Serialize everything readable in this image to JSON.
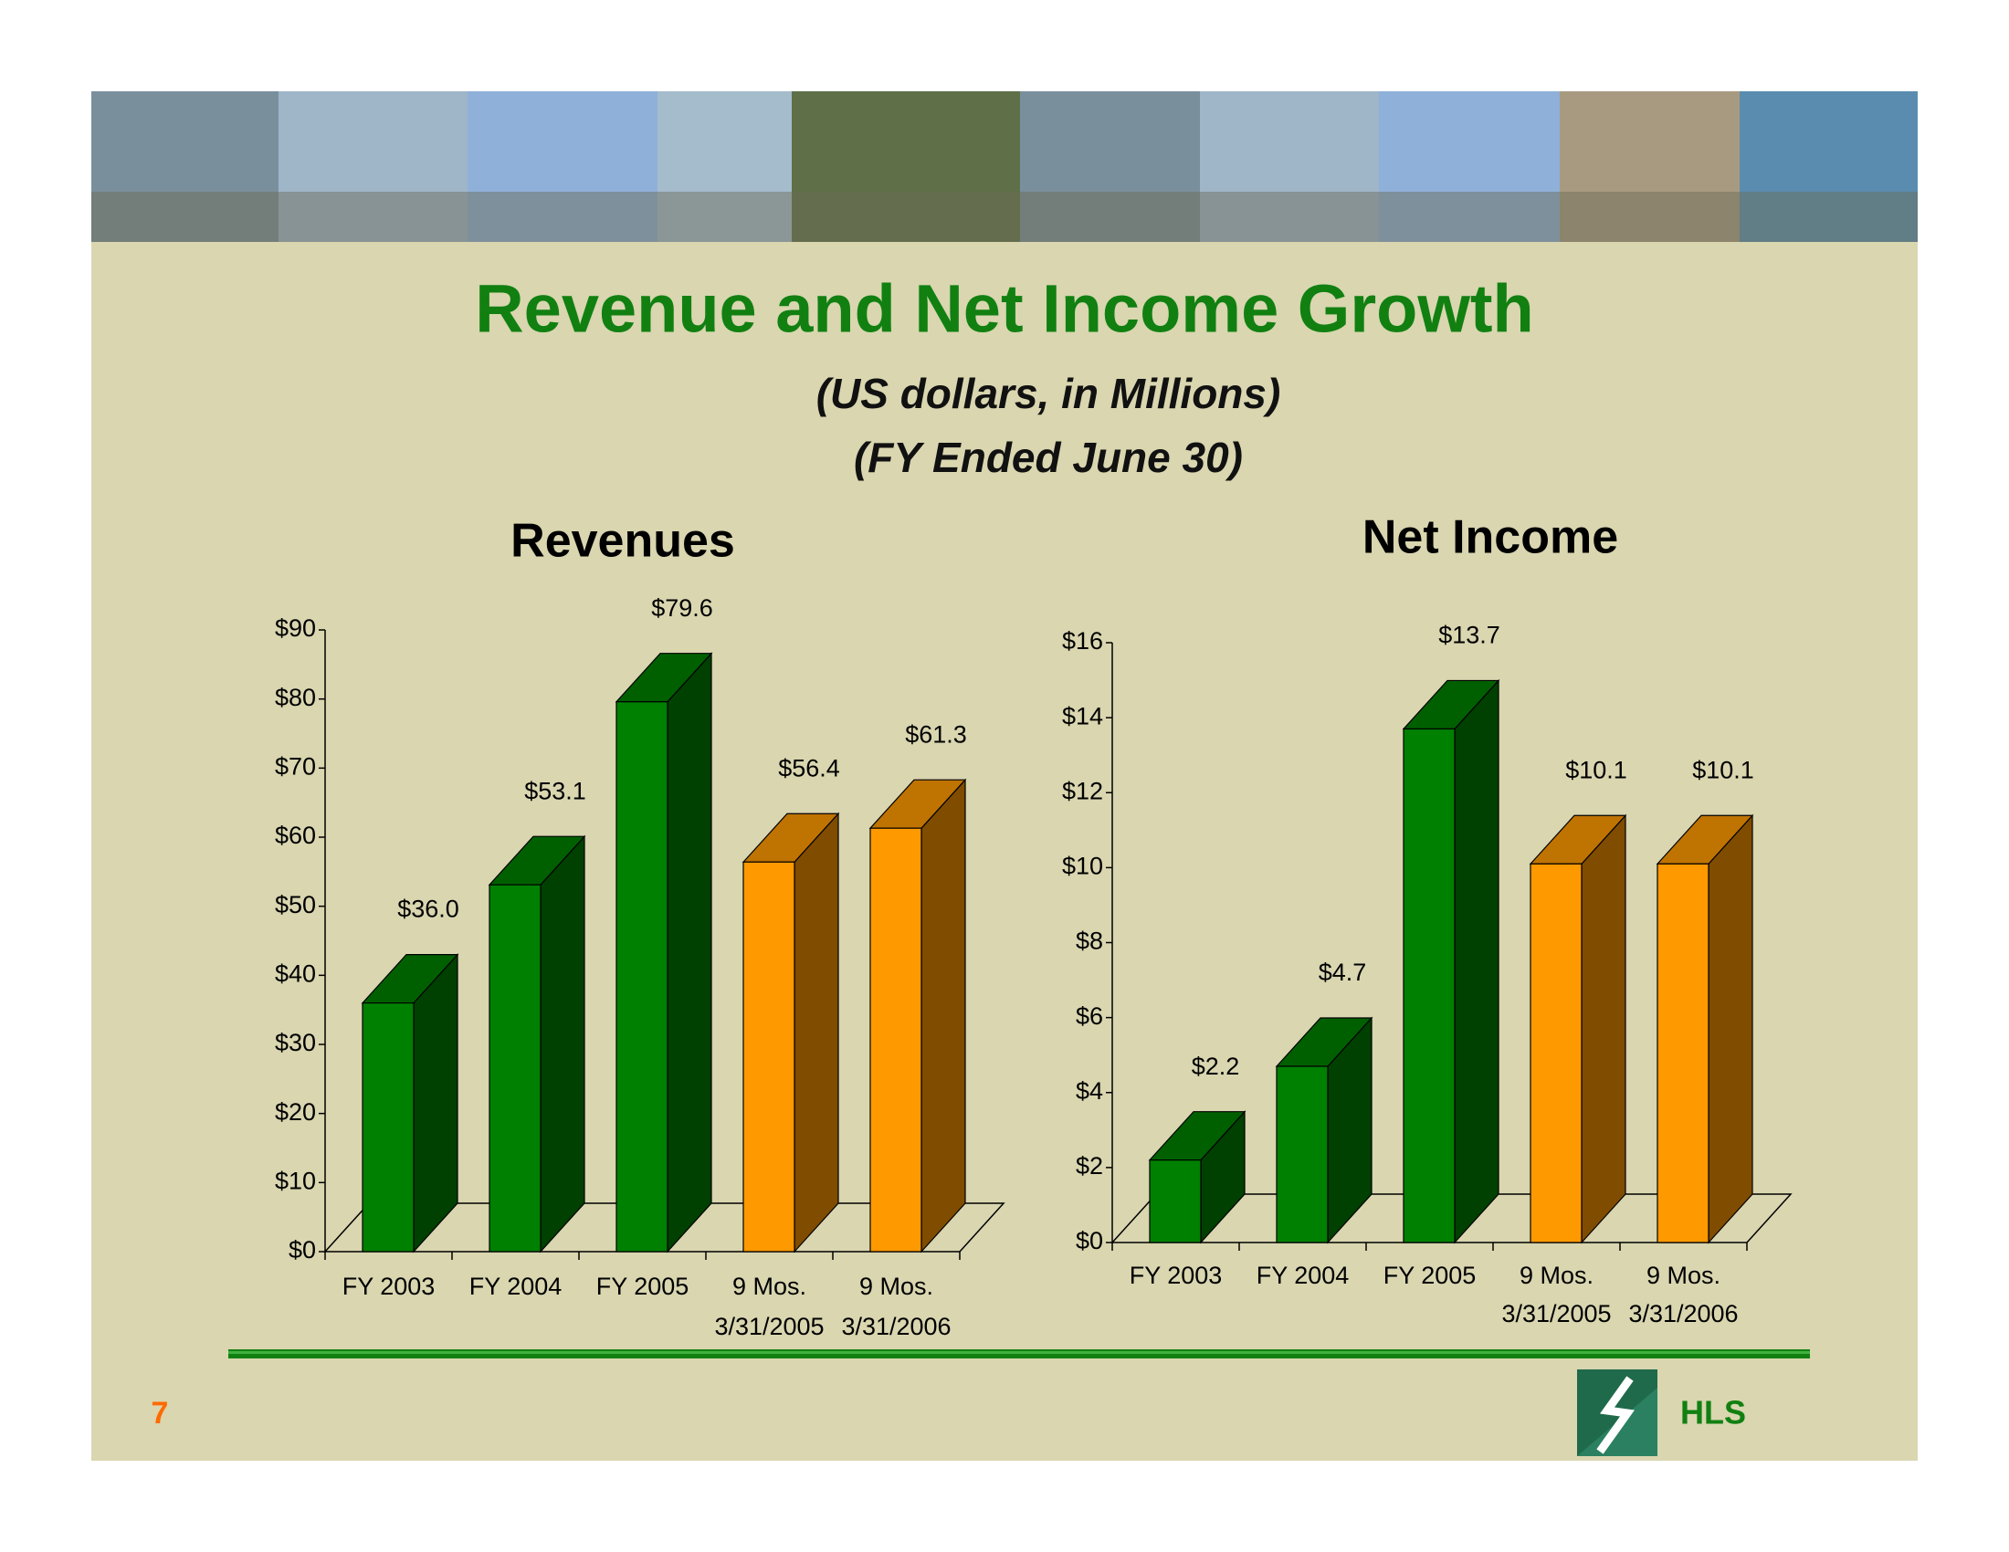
{
  "title": "Revenue and Net Income Growth",
  "subtitle": [
    "(US dollars, in Millions)",
    "(FY Ended June 30)"
  ],
  "page_number": "7",
  "logo_text": "HLS",
  "chart_data": [
    {
      "type": "bar3d",
      "title": "Revenues",
      "categories": [
        [
          "FY 2003"
        ],
        [
          "FY 2004"
        ],
        [
          "FY 2005"
        ],
        [
          "9 Mos.",
          "3/31/2005"
        ],
        [
          "9 Mos.",
          "3/31/2006"
        ]
      ],
      "values": [
        36.0,
        53.1,
        79.6,
        56.4,
        61.3
      ],
      "value_labels": [
        "$36.0",
        "$53.1",
        "$79.6",
        "$56.4",
        "$61.3"
      ],
      "colors": [
        "#008000",
        "#008000",
        "#008000",
        "#ff9900",
        "#ff9900"
      ],
      "ylim": [
        0,
        90
      ],
      "yticks": [
        {
          "value": 0,
          "label": "$0"
        },
        {
          "value": 10,
          "label": "$10"
        },
        {
          "value": 20,
          "label": "$20"
        },
        {
          "value": 30,
          "label": "$30"
        },
        {
          "value": 40,
          "label": "$40"
        },
        {
          "value": 50,
          "label": "$50"
        },
        {
          "value": 60,
          "label": "$60"
        },
        {
          "value": 70,
          "label": "$70"
        },
        {
          "value": 80,
          "label": "$80"
        },
        {
          "value": 90,
          "label": "$90"
        }
      ]
    },
    {
      "type": "bar3d",
      "title": "Net Income",
      "categories": [
        [
          "FY 2003"
        ],
        [
          "FY 2004"
        ],
        [
          "FY 2005"
        ],
        [
          "9 Mos.",
          "3/31/2005"
        ],
        [
          "9 Mos.",
          "3/31/2006"
        ]
      ],
      "values": [
        2.2,
        4.7,
        13.7,
        10.1,
        10.1
      ],
      "value_labels": [
        "$2.2",
        "$4.7",
        "$13.7",
        "$10.1",
        "$10.1"
      ],
      "colors": [
        "#008000",
        "#008000",
        "#008000",
        "#ff9900",
        "#ff9900"
      ],
      "ylim": [
        0,
        16
      ],
      "yticks": [
        {
          "value": 0,
          "label": "$0"
        },
        {
          "value": 2,
          "label": "$2"
        },
        {
          "value": 4,
          "label": "$4"
        },
        {
          "value": 6,
          "label": "$6"
        },
        {
          "value": 8,
          "label": "$8"
        },
        {
          "value": 10,
          "label": "$10"
        },
        {
          "value": 12,
          "label": "$12"
        },
        {
          "value": 14,
          "label": "$14"
        },
        {
          "value": 16,
          "label": "$16"
        }
      ]
    }
  ]
}
